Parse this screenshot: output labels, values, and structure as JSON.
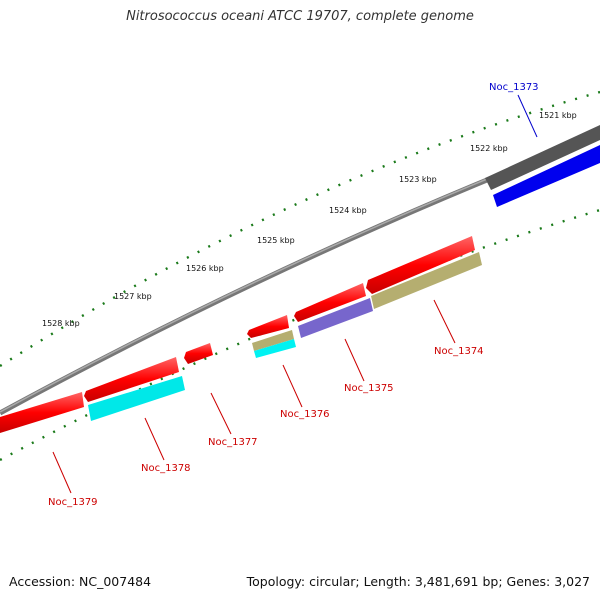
{
  "title": "Nitrosococcus oceani ATCC 19707, complete genome",
  "footer": {
    "accession": "Accession: NC_007484",
    "summary": "Topology: circular; Length: 3,481,691 bp; Genes: 3,027"
  },
  "colors": {
    "cds": "#ff0000",
    "rna": "#0000ff",
    "backbone": "#777777",
    "tick": "#1a7a1a",
    "label_plus": "#0000cc",
    "label_minus": "#cc0000"
  },
  "kbp_labels": [
    "1521 kbp",
    "1522 kbp",
    "1523 kbp",
    "1524 kbp",
    "1525 kbp",
    "1526 kbp",
    "1527 kbp",
    "1528 kbp"
  ],
  "genes": [
    {
      "id": "Noc_1373",
      "color": "#0000cc"
    },
    {
      "id": "Noc_1374",
      "color": "#cc0000"
    },
    {
      "id": "Noc_1375",
      "color": "#cc0000"
    },
    {
      "id": "Noc_1376",
      "color": "#cc0000"
    },
    {
      "id": "Noc_1377",
      "color": "#cc0000"
    },
    {
      "id": "Noc_1378",
      "color": "#cc0000"
    },
    {
      "id": "Noc_1379",
      "color": "#cc0000"
    }
  ]
}
